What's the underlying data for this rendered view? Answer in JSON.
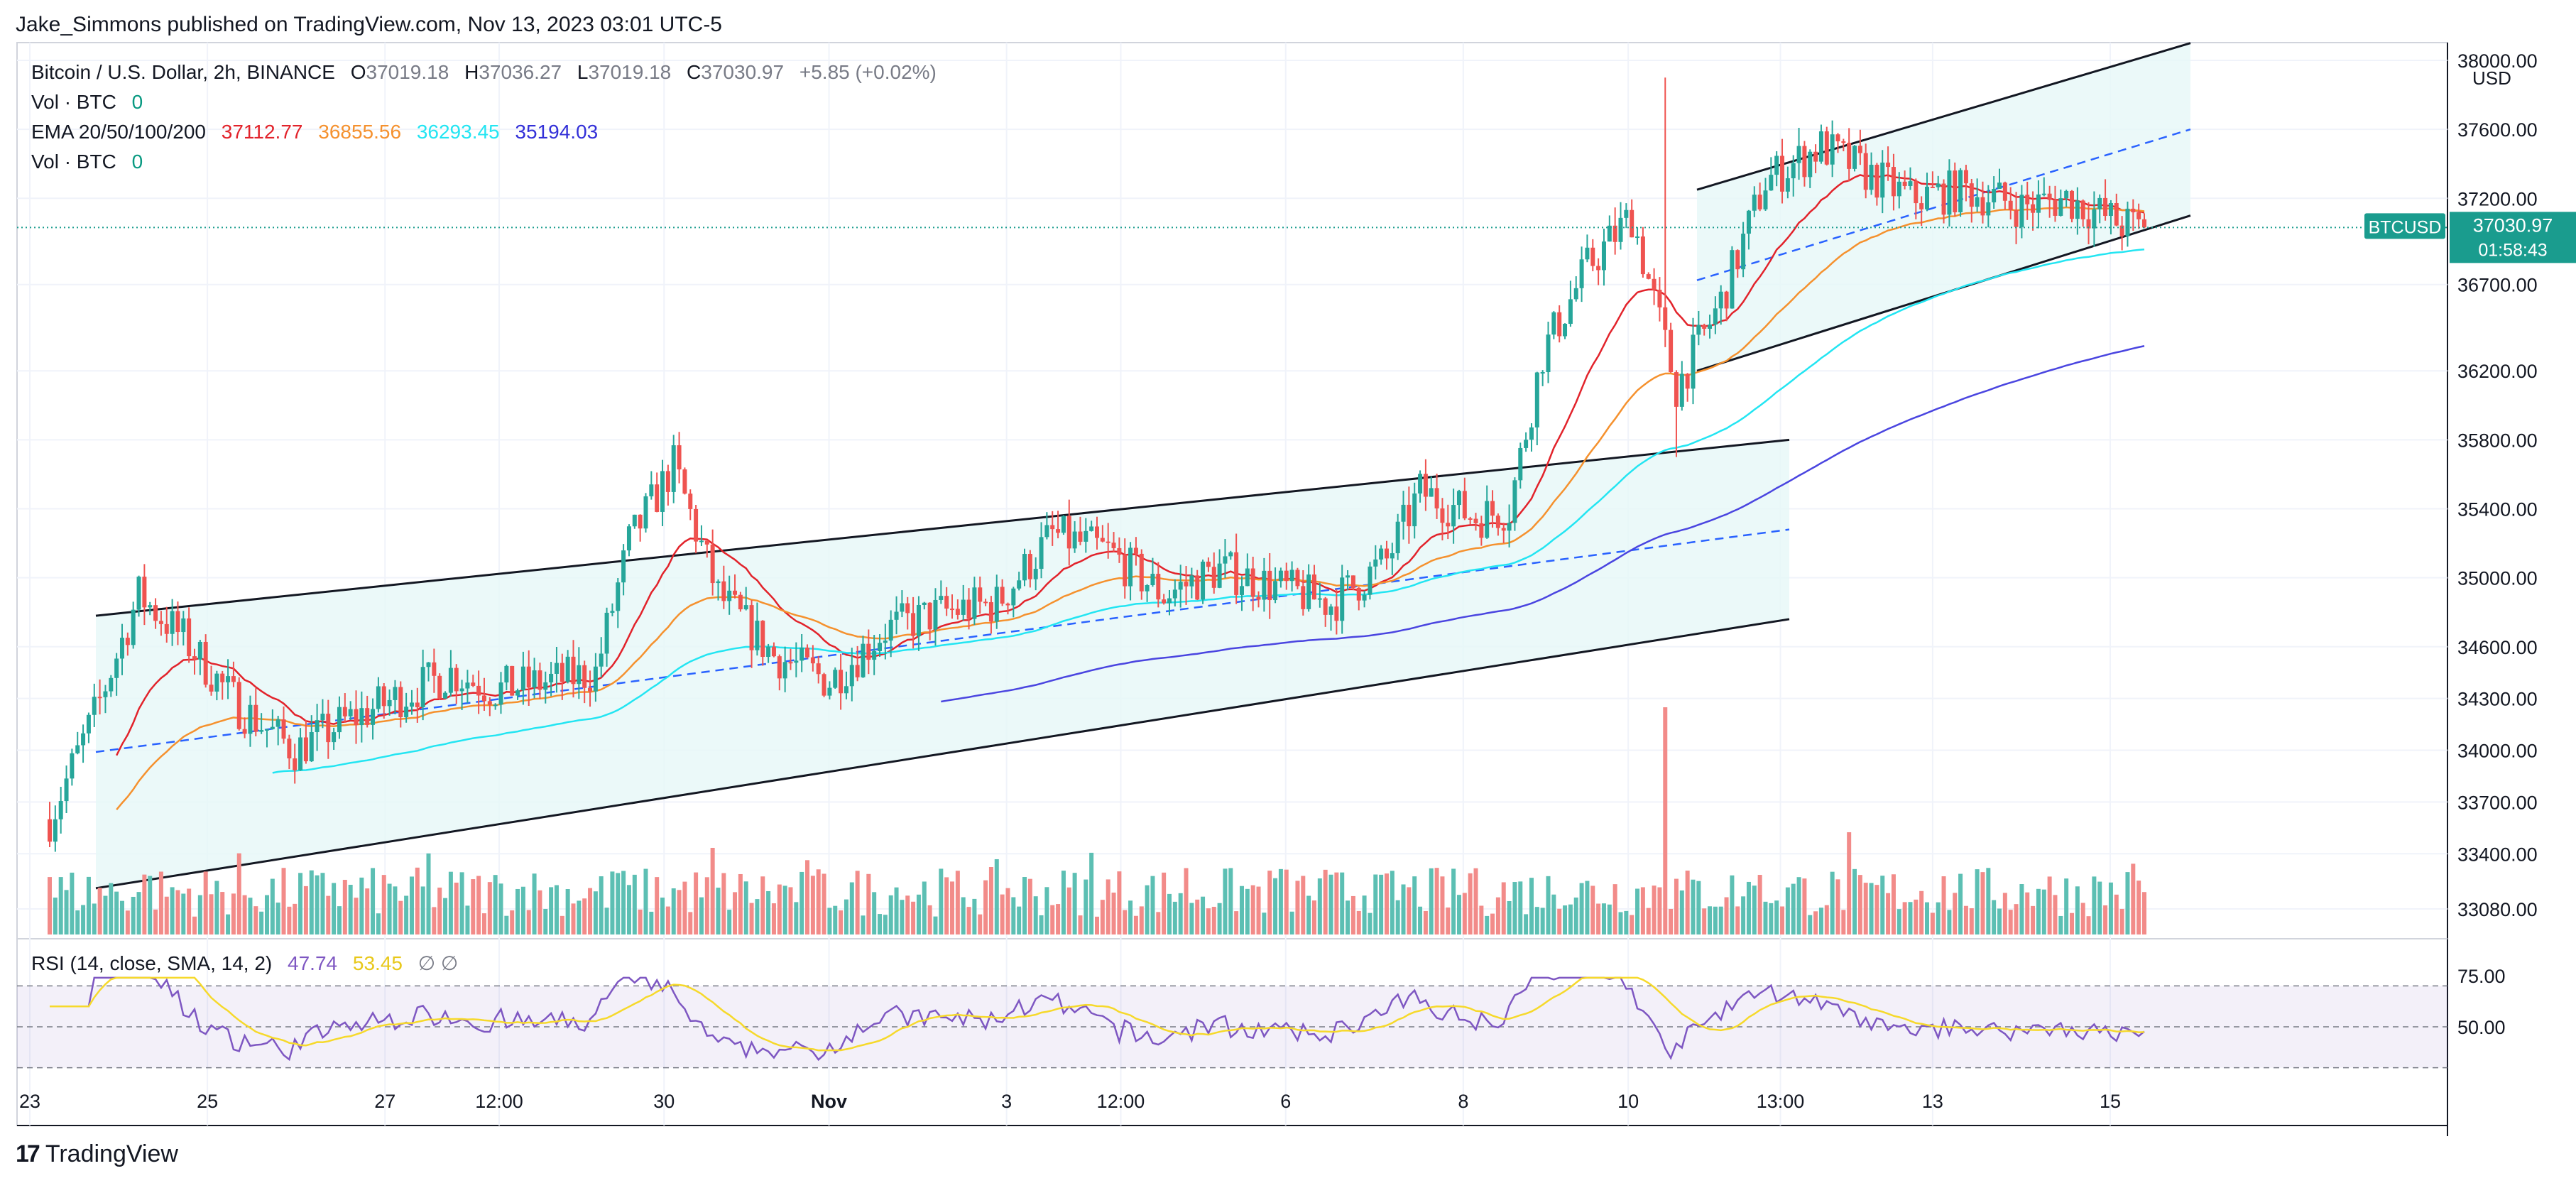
{
  "publisher_line": "Jake_Simmons published on TradingView.com, Nov 13, 2023 03:01 UTC-5",
  "legend": {
    "symbol": "Bitcoin / U.S. Dollar, 2h, BINANCE",
    "o_key": "O",
    "o_val": "37019.18",
    "h_key": "H",
    "h_val": "37036.27",
    "l_key": "L",
    "l_val": "37019.18",
    "c_key": "C",
    "c_val": "37030.97",
    "change": "+5.85 (+0.02%)",
    "vol1_label": "Vol · BTC",
    "vol1_val": "0",
    "ema_label": "EMA 20/50/100/200",
    "ema20": "37112.77",
    "ema50": "36855.56",
    "ema100": "36293.45",
    "ema200": "35194.03",
    "vol2_label": "Vol · BTC",
    "vol2_val": "0",
    "rsi_label": "RSI (14, close, SMA, 14, 2)",
    "rsi_val": "47.74",
    "rsi_sma_val": "53.45",
    "rsi_icons": "∅ ∅"
  },
  "currency": "USD",
  "footer_brand": "TradingView",
  "colors": {
    "up": "#26a69a",
    "down": "#ef5350",
    "vol_up": "#5cbfb3",
    "vol_down": "#f28b89",
    "ema20": "#e2232b",
    "ema50": "#f5912e",
    "ema100": "#23e5f2",
    "ema200": "#4a45e0",
    "rsi": "#7e57c2",
    "rsi_sma": "#f6d92b",
    "channel_fill": "#e6f7f7",
    "price_tag": "#1a9c8e"
  },
  "chart_data": {
    "type": "candlestick",
    "symbol": "BTCUSD",
    "interval": "2h",
    "price_axis_ticks": [
      33080,
      33400,
      33700,
      34000,
      34300,
      34600,
      35000,
      35400,
      35800,
      36200,
      36700,
      37200,
      37600,
      38000
    ],
    "price_axis_ticks_visible_labels": [
      "33080.00",
      "33400.00",
      "33700.00",
      "34000.00",
      "34300.00",
      "34600.00",
      "35000.00",
      "35400.00",
      "35800.00",
      "36200.00",
      "36700.00",
      "37200.00",
      "37600.00",
      "38000.00"
    ],
    "time_axis_labels": [
      "23",
      "25",
      "27",
      "12:00",
      "30",
      "Nov",
      "3",
      "12:00",
      "6",
      "8",
      "10",
      "13:00",
      "13",
      "15"
    ],
    "last_price": {
      "symbol": "BTCUSD",
      "price": "37030.97",
      "countdown": "01:58:43",
      "value": 37030.97
    },
    "rsi": {
      "ticks": [
        "75.00",
        "50.00"
      ],
      "bands": [
        70,
        30
      ],
      "mid": 50,
      "last": 47.74,
      "sma_last": 53.45
    },
    "ema_last": {
      "ema20": 37112.77,
      "ema50": 36855.56,
      "ema100": 36293.45,
      "ema200": 35194.03
    },
    "channels": [
      {
        "name": "",
        "upper": [
          [
            0.0,
            34780
          ],
          [
            1.0,
            35800
          ]
        ],
        "lower": [
          [
            0.0,
            33200
          ],
          [
            1.0,
            34760
          ]
        ]
      },
      {
        "name": "",
        "upper": [
          [
            0.0,
            37250
          ],
          [
            1.0,
            38100
          ]
        ],
        "lower": [
          [
            0.0,
            36200
          ],
          [
            1.0,
            37100
          ]
        ]
      }
    ],
    "anchor_path": [
      [
        0,
        33600
      ],
      [
        8,
        34200
      ],
      [
        16,
        34900
      ],
      [
        24,
        34650
      ],
      [
        34,
        34250
      ],
      [
        44,
        34000
      ],
      [
        52,
        34150
      ],
      [
        62,
        34300
      ],
      [
        72,
        34450
      ],
      [
        80,
        34350
      ],
      [
        90,
        34400
      ],
      [
        98,
        34450
      ],
      [
        104,
        35200
      ],
      [
        112,
        35650
      ],
      [
        120,
        34900
      ],
      [
        130,
        34550
      ],
      [
        140,
        34400
      ],
      [
        150,
        34700
      ],
      [
        160,
        34800
      ],
      [
        170,
        34850
      ],
      [
        180,
        35250
      ],
      [
        190,
        35150
      ],
      [
        200,
        34900
      ],
      [
        210,
        35050
      ],
      [
        220,
        34950
      ],
      [
        230,
        34850
      ],
      [
        240,
        35100
      ],
      [
        246,
        35500
      ],
      [
        256,
        35350
      ],
      [
        262,
        35400
      ],
      [
        268,
        36300
      ],
      [
        276,
        36800
      ],
      [
        284,
        37100
      ],
      [
        292,
        36100
      ],
      [
        300,
        36600
      ],
      [
        308,
        37300
      ],
      [
        318,
        37500
      ],
      [
        326,
        37350
      ],
      [
        334,
        37200
      ],
      [
        344,
        37250
      ],
      [
        354,
        37150
      ],
      [
        362,
        37200
      ],
      [
        372,
        37050
      ],
      [
        376,
        37030.97
      ]
    ]
  }
}
